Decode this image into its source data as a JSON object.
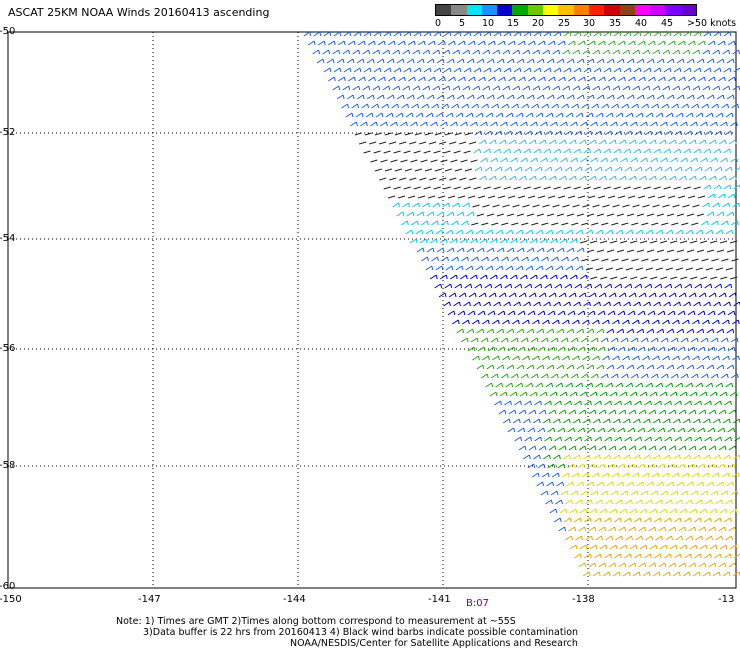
{
  "map": {
    "title": "ASCAT 25KM NOAA Winds 20160413 ascending",
    "legend": {
      "labels": [
        "0",
        "5",
        "10",
        "15",
        "20",
        "25",
        "30",
        "35",
        "40",
        "45",
        ">50 knots"
      ],
      "colors": [
        "#444444",
        "#888888",
        "#00e5ff",
        "#1e90ff",
        "#0000cc",
        "#00aa00",
        "#66cc00",
        "#ffff00",
        "#ffc000",
        "#ff8000",
        "#ff2000",
        "#cc0000",
        "#8b4513",
        "#ff00ff",
        "#cc00ff",
        "#8000ff",
        "#6600cc"
      ]
    },
    "y_axis_labels": [
      "-50",
      "-52",
      "-54",
      "-56",
      "-58",
      "-60"
    ],
    "x_axis_labels": [
      "-150",
      "-147",
      "-144",
      "-141",
      "-138",
      "-13"
    ],
    "time_label": "B:07",
    "notes": [
      "Note: 1) Times are GMT 2)Times along bottom correspond to measurement at ~55S",
      "3)Data buffer is 22 hrs from 20160413 4) Black wind barbs indicate possible contamination",
      "NOAA/NESDIS/Center for Satellite Applications and Research"
    ]
  }
}
